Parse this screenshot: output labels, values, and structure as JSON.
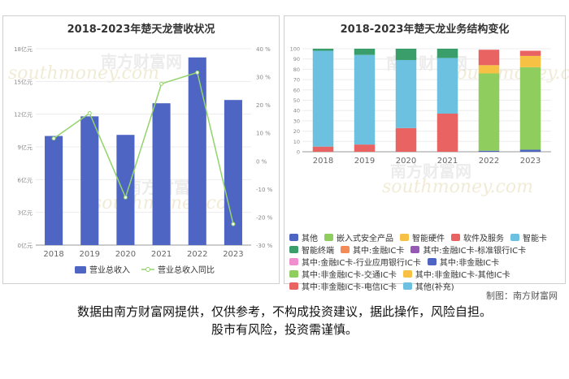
{
  "left": {
    "title": "2018-2023年楚天龙营收状况",
    "watermark": "南方财富网",
    "watermark2": "southmoney.com",
    "chart_data": {
      "type": "bar",
      "categories": [
        "2018",
        "2019",
        "2020",
        "2021",
        "2022",
        "2023"
      ],
      "series": [
        {
          "name": "营业总收入",
          "type": "bar",
          "color": "#4e65c4",
          "values": [
            10.0,
            11.8,
            10.1,
            13.0,
            17.2,
            13.3
          ]
        },
        {
          "name": "营业总收入同比",
          "type": "line",
          "color": "#92d46b",
          "values": [
            8.0,
            17.0,
            -13.0,
            27.5,
            31.5,
            -22.5
          ]
        }
      ],
      "y_left": {
        "ticks": [
          "0亿元",
          "3亿元",
          "6亿元",
          "9亿元",
          "12亿元",
          "15亿元",
          "18亿元"
        ],
        "ylim": [
          0,
          18
        ]
      },
      "y_right": {
        "ticks": [
          "-30 %",
          "-20 %",
          "-10 %",
          "0 %",
          "10 %",
          "20 %",
          "30 %",
          "40 %"
        ],
        "ylim": [
          -30,
          40
        ]
      }
    }
  },
  "right": {
    "title": "2018-2023年楚天龙业务结构变化",
    "watermark": "南方财富网",
    "watermark2": "southmoney.com",
    "chart_data": {
      "type": "bar",
      "stacked": true,
      "categories": [
        "2018",
        "2019",
        "2020",
        "2021",
        "2022",
        "2023"
      ],
      "y_ticks": [
        "0",
        "10",
        "20",
        "30",
        "40",
        "50",
        "60",
        "70",
        "80",
        "90",
        "100"
      ],
      "ylim": [
        0,
        100
      ],
      "series": [
        {
          "name": "其他",
          "color": "#4e65c4",
          "values": [
            0,
            0,
            0,
            0,
            1,
            2
          ]
        },
        {
          "name": "嵌入式安全产品",
          "color": "#8fcd5e",
          "values": [
            0,
            0,
            0,
            0,
            75,
            80
          ]
        },
        {
          "name": "智能硬件",
          "color": "#f7c243",
          "values": [
            0,
            0,
            0,
            0,
            8,
            11
          ]
        },
        {
          "name": "软件及服务",
          "color": "#e96363",
          "values": [
            5,
            7,
            23,
            37,
            15,
            5
          ]
        },
        {
          "name": "智能卡",
          "color": "#6cc1e0",
          "values": [
            93,
            87,
            66,
            54,
            0,
            0
          ]
        },
        {
          "name": "智能终端",
          "color": "#3a9e6a",
          "values": [
            2,
            6,
            11,
            9,
            0,
            0
          ]
        },
        {
          "name": "其中:金融IC卡",
          "color": "#f38b56",
          "values": [
            0,
            0,
            0,
            0,
            0,
            0
          ]
        },
        {
          "name": "其中:金融IC卡-标准银行IC卡",
          "color": "#9558b5",
          "values": [
            0,
            0,
            0,
            0,
            0,
            0
          ]
        },
        {
          "name": "其中:金融IC卡-行业应用银行IC卡",
          "color": "#f08fd0",
          "values": [
            0,
            0,
            0,
            0,
            0,
            0
          ]
        },
        {
          "name": "其中:非金融IC卡",
          "color": "#4e65c4",
          "values": [
            0,
            0,
            0,
            0,
            0,
            0
          ]
        },
        {
          "name": "其中:非金融IC卡-交通IC卡",
          "color": "#8fcd5e",
          "values": [
            0,
            0,
            0,
            0,
            0,
            0
          ]
        },
        {
          "name": "其中:非金融IC卡-其他IC卡",
          "color": "#f7c243",
          "values": [
            0,
            0,
            0,
            0,
            0,
            0
          ]
        },
        {
          "name": "其中:非金融IC卡-电信IC卡",
          "color": "#e96363",
          "values": [
            0,
            0,
            0,
            0,
            0,
            0
          ]
        },
        {
          "name": "其他(补充)",
          "color": "#6cc1e0",
          "values": [
            0,
            0,
            0,
            0,
            0,
            0
          ]
        }
      ],
      "legend_rows": [
        [
          "其他",
          "嵌入式安全产品",
          "智能硬件",
          "软件及服务",
          "智能卡"
        ],
        [
          "智能终端",
          "其中:金融IC卡",
          "其中:金融IC卡-标准银行IC卡"
        ],
        [
          "其中:金融IC卡-行业应用银行IC卡",
          "其中:非金融IC卡"
        ],
        [
          "其中:非金融IC卡-交通IC卡",
          "其中:非金融IC卡-其他IC卡"
        ],
        [
          "其中:非金融IC卡-电信IC卡",
          "其他(补充)"
        ]
      ]
    }
  },
  "credit": "制图：南方财富网",
  "disclaimer": {
    "line1": "数据由南方财富网提供，仅供参考，不构成投资建议，据此操作，风险自担。",
    "line2": "股市有风险，投资需谨慎。"
  }
}
